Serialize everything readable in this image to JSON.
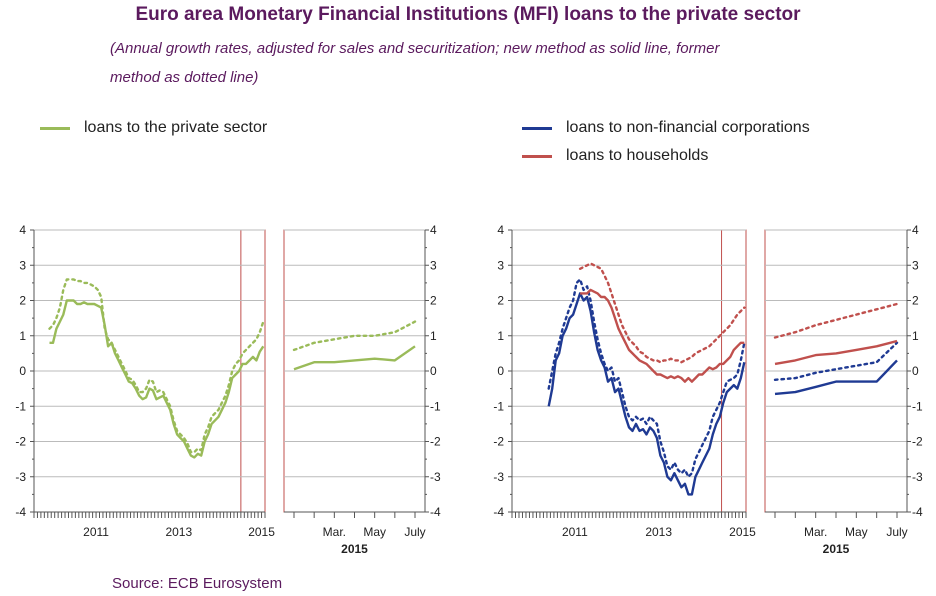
{
  "header": {
    "title": "Euro area Monetary Financial Institutions (MFI) loans to the private sector",
    "subtitle_line1": "(Annual growth rates, adjusted for sales and securitization; new method as solid line, former",
    "subtitle_line2": "method as dotted line)"
  },
  "legend_left": {
    "items": [
      {
        "label": "loans to the private sector",
        "color": "#9abb59"
      }
    ]
  },
  "legend_right": {
    "items": [
      {
        "label": "loans to non-financial corporations",
        "color": "#1f3a93"
      },
      {
        "label": "loans to households",
        "color": "#c0504d"
      }
    ]
  },
  "source": "Source: ECB Eurosystem",
  "colors": {
    "private": "#9abb59",
    "nfc": "#1f3a93",
    "hh": "#c0504d",
    "highlight": "#c0504d",
    "grid": "#bbbbbb"
  },
  "chart_data": [
    {
      "type": "line",
      "panel": "left-long",
      "xticks": [
        "2011",
        "2013",
        "2015"
      ],
      "ylim": [
        -4,
        4
      ],
      "yticks": [
        "4",
        "3",
        "2",
        "1",
        "0",
        "-1",
        "-2",
        "-3",
        "-4"
      ],
      "x_start": "2010-01",
      "x_end": "2015-07",
      "highlight_start": "2015-01",
      "series": [
        {
          "name": "loans to the private sector",
          "style": "solid",
          "values": [
            0.8,
            0.8,
            1.2,
            1.4,
            1.6,
            2.0,
            2.0,
            2.0,
            1.9,
            1.9,
            1.95,
            1.9,
            1.9,
            1.9,
            1.85,
            1.8,
            1.3,
            0.7,
            0.8,
            0.5,
            0.3,
            0.1,
            -0.1,
            -0.3,
            -0.35,
            -0.5,
            -0.7,
            -0.8,
            -0.75,
            -0.5,
            -0.55,
            -0.8,
            -0.75,
            -0.7,
            -0.9,
            -1.1,
            -1.5,
            -1.8,
            -1.9,
            -2.0,
            -2.2,
            -2.4,
            -2.45,
            -2.35,
            -2.4,
            -2.0,
            -1.8,
            -1.5,
            -1.4,
            -1.3,
            -1.1,
            -0.9,
            -0.6,
            -0.2,
            -0.1,
            0.0,
            0.2,
            0.2,
            0.3,
            0.4,
            0.3,
            0.55,
            0.7
          ]
        },
        {
          "name": "loans to the private sector",
          "style": "dotted",
          "values": [
            1.2,
            1.3,
            1.5,
            1.8,
            2.3,
            2.6,
            2.6,
            2.6,
            2.55,
            2.55,
            2.5,
            2.5,
            2.45,
            2.4,
            2.3,
            2.1,
            1.2,
            0.9,
            0.8,
            0.6,
            0.4,
            0.2,
            0.0,
            -0.2,
            -0.25,
            -0.4,
            -0.6,
            -0.6,
            -0.5,
            -0.25,
            -0.3,
            -0.6,
            -0.55,
            -0.6,
            -0.8,
            -1.0,
            -1.4,
            -1.7,
            -1.8,
            -1.9,
            -2.05,
            -2.3,
            -2.3,
            -2.2,
            -2.25,
            -1.8,
            -1.6,
            -1.3,
            -1.2,
            -1.1,
            -0.9,
            -0.7,
            -0.4,
            0.0,
            0.2,
            0.3,
            0.5,
            0.6,
            0.7,
            0.8,
            0.9,
            1.1,
            1.4
          ]
        }
      ]
    },
    {
      "type": "line",
      "panel": "left-zoom",
      "xticks": [
        "Mar.",
        "May",
        "July"
      ],
      "year_label": "2015",
      "ylim": [
        -4,
        4
      ],
      "yticks": [
        "4",
        "3",
        "2",
        "1",
        "0",
        "-1",
        "-2",
        "-3",
        "-4"
      ],
      "x": [
        "Jan",
        "Feb",
        "Mar",
        "Apr",
        "May",
        "Jun",
        "Jul"
      ],
      "series": [
        {
          "name": "loans to the private sector",
          "style": "solid",
          "values": [
            0.05,
            0.25,
            0.25,
            0.3,
            0.35,
            0.3,
            0.7
          ]
        },
        {
          "name": "loans to the private sector",
          "style": "dotted",
          "values": [
            0.6,
            0.8,
            0.9,
            1.0,
            1.0,
            1.1,
            1.4
          ]
        }
      ]
    },
    {
      "type": "line",
      "panel": "right-long",
      "xticks": [
        "2011",
        "2013",
        "2015"
      ],
      "ylim": [
        -4,
        4
      ],
      "yticks": [
        "4",
        "3",
        "2",
        "1",
        "0",
        "-1",
        "-2",
        "-3",
        "-4"
      ],
      "x_start": "2010-01",
      "x_end": "2015-07",
      "highlight_start": "2015-01",
      "series": [
        {
          "name": "loans to non-financial corporations",
          "style": "solid",
          "values": [
            -1.0,
            -0.5,
            0.3,
            0.5,
            1.0,
            1.2,
            1.5,
            1.6,
            1.9,
            2.2,
            2.0,
            2.1,
            1.7,
            1.1,
            0.6,
            0.3,
            0.1,
            -0.3,
            -0.2,
            -0.6,
            -0.5,
            -0.9,
            -1.3,
            -1.6,
            -1.7,
            -1.5,
            -1.7,
            -1.65,
            -1.8,
            -1.6,
            -1.7,
            -1.9,
            -2.4,
            -2.6,
            -3.0,
            -3.1,
            -2.9,
            -3.1,
            -3.3,
            -3.2,
            -3.5,
            -3.5,
            -3.0,
            -2.8,
            -2.6,
            -2.4,
            -2.2,
            -1.8,
            -1.5,
            -1.3,
            -0.9,
            -0.6,
            -0.5,
            -0.4,
            -0.5,
            -0.2,
            0.25
          ]
        },
        {
          "name": "loans to non-financial corporations",
          "style": "dotted",
          "values": [
            -0.5,
            0.0,
            0.5,
            0.8,
            1.2,
            1.5,
            1.8,
            2.0,
            2.5,
            2.6,
            2.3,
            2.4,
            2.0,
            1.4,
            0.9,
            0.5,
            0.2,
            0.0,
            0.1,
            -0.3,
            -0.2,
            -0.6,
            -1.0,
            -1.3,
            -1.4,
            -1.3,
            -1.4,
            -1.35,
            -1.5,
            -1.3,
            -1.4,
            -1.5,
            -2.0,
            -2.3,
            -2.7,
            -2.8,
            -2.6,
            -2.8,
            -2.9,
            -2.8,
            -3.0,
            -2.9,
            -2.5,
            -2.3,
            -2.1,
            -1.9,
            -1.7,
            -1.3,
            -1.1,
            -0.9,
            -0.6,
            -0.3,
            -0.25,
            -0.2,
            -0.1,
            0.3,
            0.8
          ]
        },
        {
          "name": "loans to households",
          "style": "solid",
          "values": [
            2.2,
            2.2,
            2.2,
            2.3,
            2.25,
            2.2,
            2.1,
            2.1,
            2.0,
            1.8,
            1.5,
            1.2,
            1.0,
            0.8,
            0.6,
            0.5,
            0.4,
            0.3,
            0.25,
            0.2,
            0.1,
            0.0,
            -0.1,
            -0.1,
            -0.15,
            -0.2,
            -0.15,
            -0.2,
            -0.15,
            -0.2,
            -0.3,
            -0.2,
            -0.3,
            -0.2,
            -0.1,
            -0.1,
            0.0,
            0.1,
            0.05,
            0.1,
            0.2,
            0.2,
            0.3,
            0.4,
            0.6,
            0.7,
            0.8,
            0.8
          ]
        },
        {
          "name": "loans to households",
          "style": "dotted",
          "values": [
            2.9,
            2.95,
            3.0,
            3.05,
            3.0,
            2.95,
            2.9,
            2.7,
            2.5,
            2.2,
            1.9,
            1.6,
            1.3,
            1.1,
            0.9,
            0.8,
            0.7,
            0.55,
            0.5,
            0.4,
            0.35,
            0.3,
            0.3,
            0.25,
            0.3,
            0.3,
            0.35,
            0.3,
            0.3,
            0.25,
            0.3,
            0.35,
            0.4,
            0.5,
            0.55,
            0.6,
            0.65,
            0.7,
            0.8,
            0.9,
            1.0,
            1.1,
            1.2,
            1.3,
            1.45,
            1.6,
            1.7,
            1.8
          ]
        }
      ]
    },
    {
      "type": "line",
      "panel": "right-zoom",
      "xticks": [
        "Mar.",
        "May",
        "July"
      ],
      "year_label": "2015",
      "ylim": [
        -4,
        4
      ],
      "yticks": [
        "4",
        "3",
        "2",
        "1",
        "0",
        "-1",
        "-2",
        "-3",
        "-4"
      ],
      "x": [
        "Jan",
        "Feb",
        "Mar",
        "Apr",
        "May",
        "Jun",
        "Jul"
      ],
      "series": [
        {
          "name": "loans to non-financial corporations",
          "style": "solid",
          "values": [
            -0.65,
            -0.6,
            -0.45,
            -0.3,
            -0.3,
            -0.3,
            0.3
          ]
        },
        {
          "name": "loans to non-financial corporations",
          "style": "dotted",
          "values": [
            -0.25,
            -0.2,
            -0.05,
            0.05,
            0.15,
            0.25,
            0.8
          ]
        },
        {
          "name": "loans to households",
          "style": "solid",
          "values": [
            0.2,
            0.3,
            0.45,
            0.5,
            0.6,
            0.7,
            0.85
          ]
        },
        {
          "name": "loans to households",
          "style": "dotted",
          "values": [
            0.95,
            1.1,
            1.3,
            1.45,
            1.6,
            1.75,
            1.9
          ]
        }
      ]
    }
  ]
}
